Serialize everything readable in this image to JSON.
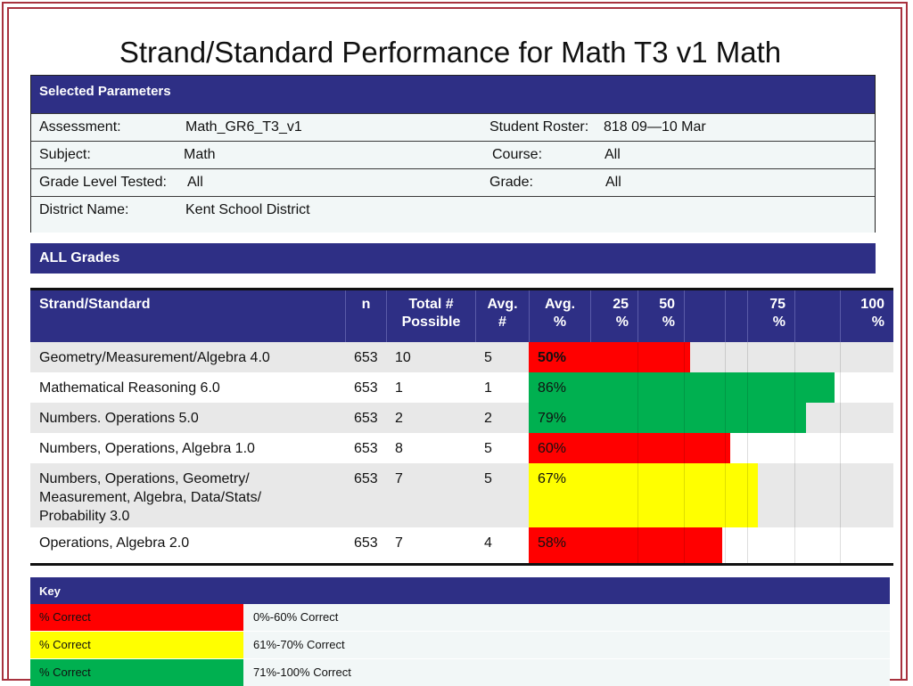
{
  "title": "Strand/Standard Performance for Math T3 v1 Math",
  "colors": {
    "header_blue": "#2e2f85",
    "red": "#ff0000",
    "yellow": "#ffff00",
    "green": "#00b050",
    "frame": "#a8323e"
  },
  "parameters": {
    "header": "Selected Parameters",
    "rows": [
      {
        "label": "Assessment:",
        "value": "Math_GR6_T3_v1",
        "label2": "Student Roster:",
        "value2": "818 09—10 Mar"
      },
      {
        "label": "Subject:",
        "value": "Math",
        "label2": "Course:",
        "value2": "All"
      },
      {
        "label": "Grade Level Tested:",
        "value": "All",
        "label2": "Grade:",
        "value2": "All"
      },
      {
        "label": "District Name:",
        "value": "Kent School District",
        "label2": "",
        "value2": ""
      }
    ]
  },
  "grades_bar": "ALL Grades",
  "table": {
    "headers": {
      "strand": "Strand/Standard",
      "n": "n",
      "total_line1": "Total #",
      "total_line2": "Possible",
      "avg_num_line1": "Avg.",
      "avg_num_line2": "#",
      "avg_pct_line1": "Avg.",
      "avg_pct_line2": "%",
      "p25_line1": "25",
      "p25_line2": "%",
      "p50_line1": "50",
      "p50_line2": "%",
      "p75_line1": "75",
      "p75_line2": "%",
      "p100_line1": "100",
      "p100_line2": "%"
    },
    "rows": [
      {
        "strand": "Geometry/Measurement/Algebra 4.0",
        "n": "653",
        "total": "10",
        "avg": "5",
        "pct": "50%",
        "pct_value": 50,
        "color": "red",
        "bold": true
      },
      {
        "strand": "Mathematical Reasoning 6.0",
        "n": "653",
        "total": "1",
        "avg": "1",
        "pct": "86%",
        "pct_value": 86,
        "color": "green",
        "bold": false
      },
      {
        "strand": "Numbers. Operations 5.0",
        "n": "653",
        "total": "2",
        "avg": "2",
        "pct": "79%",
        "pct_value": 79,
        "color": "green",
        "bold": false
      },
      {
        "strand": "Numbers, Operations, Algebra 1.0",
        "n": "653",
        "total": "8",
        "avg": "5",
        "pct": "60%",
        "pct_value": 60,
        "color": "red",
        "bold": false
      },
      {
        "strand": "Numbers, Operations, Geometry/ Measurement, Algebra, Data/Stats/ Probability 3.0",
        "n": "653",
        "total": "7",
        "avg": "5",
        "pct": "67%",
        "pct_value": 67,
        "color": "yellow",
        "bold": false
      },
      {
        "strand": "Operations, Algebra 2.0",
        "n": "653",
        "total": "7",
        "avg": "4",
        "pct": "58%",
        "pct_value": 58,
        "color": "red",
        "bold": false
      }
    ]
  },
  "key": {
    "header": "Key",
    "items": [
      {
        "swatch_label": "% Correct",
        "desc": "0%-60% Correct",
        "color": "red"
      },
      {
        "swatch_label": "% Correct",
        "desc": "61%-70% Correct",
        "color": "yellow"
      },
      {
        "swatch_label": "% Correct",
        "desc": "71%-100% Correct",
        "color": "green"
      }
    ]
  }
}
